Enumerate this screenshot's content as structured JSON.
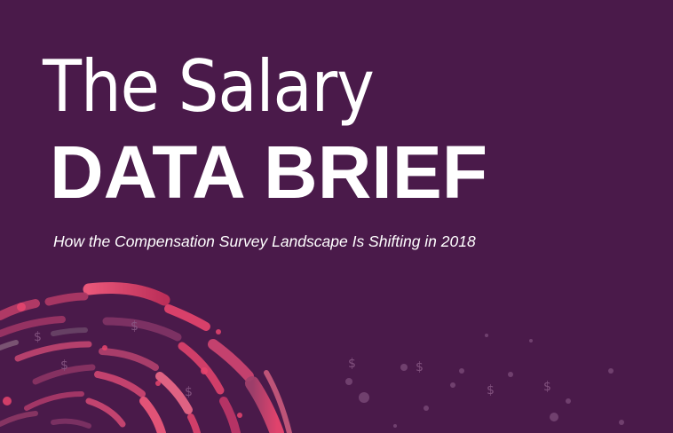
{
  "cover": {
    "title_line1": "The Salary",
    "title_line2": "DATA BRIEF",
    "subtitle": "How the Compensation Survey Landscape Is Shifting in 2018"
  },
  "colors": {
    "background": "#4a1a4a",
    "text": "#ffffff",
    "accent_pink": "#e8456e",
    "accent_mauve": "#7a3a6a"
  },
  "decoration": {
    "symbol": "$"
  }
}
